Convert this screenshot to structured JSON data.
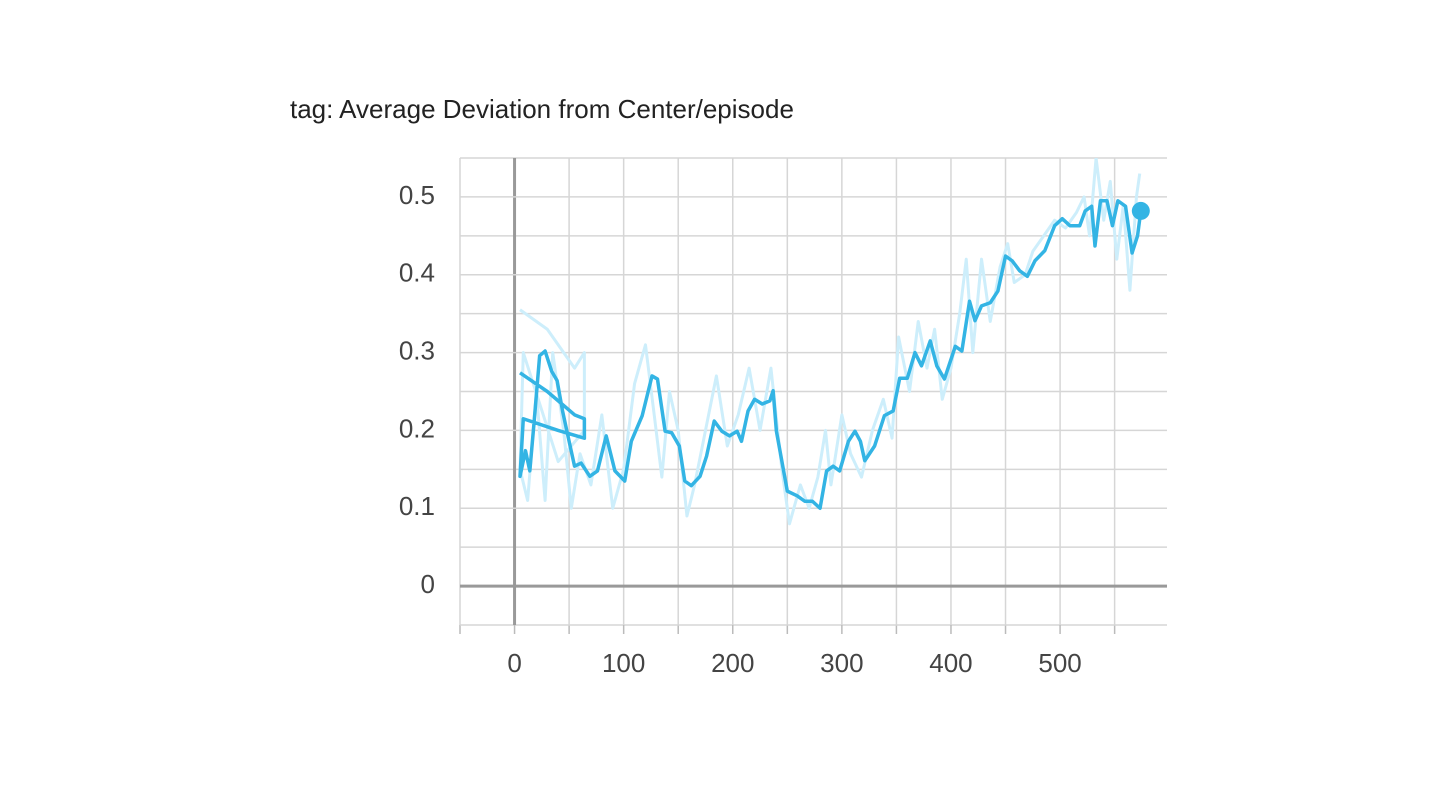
{
  "chart_data": {
    "type": "line",
    "title": "tag: Average Deviation from Center/episode",
    "xlim": [
      -50,
      598
    ],
    "ylim": [
      -0.05,
      0.55
    ],
    "xticks": [
      0,
      100,
      200,
      300,
      400,
      500
    ],
    "yticks": [
      0,
      0.1,
      0.2,
      0.3,
      0.4,
      0.5
    ],
    "grid": true,
    "series": [
      {
        "color": "#cdeefb",
        "x": [
          5,
          30,
          55,
          64,
          64,
          40,
          8,
          5,
          12,
          20,
          28,
          35,
          45,
          52,
          60,
          70,
          80,
          90,
          100,
          110,
          120,
          128,
          135,
          142,
          150,
          158,
          165,
          175,
          185,
          195,
          205,
          215,
          225,
          235,
          245,
          252,
          262,
          270,
          278,
          285,
          290,
          300,
          308,
          318,
          328,
          338,
          346,
          352,
          362,
          370,
          378,
          385,
          392,
          400,
          408,
          414,
          420,
          428,
          436,
          445,
          452,
          458,
          468,
          475,
          485,
          495,
          505,
          515,
          522,
          527,
          533,
          540,
          546,
          552,
          558,
          564,
          570,
          573
        ],
        "values": [
          0.355,
          0.33,
          0.28,
          0.3,
          0.2,
          0.16,
          0.3,
          0.15,
          0.11,
          0.25,
          0.11,
          0.3,
          0.2,
          0.1,
          0.17,
          0.13,
          0.22,
          0.1,
          0.15,
          0.26,
          0.31,
          0.22,
          0.14,
          0.25,
          0.2,
          0.09,
          0.13,
          0.2,
          0.27,
          0.18,
          0.22,
          0.28,
          0.2,
          0.28,
          0.15,
          0.08,
          0.13,
          0.1,
          0.14,
          0.2,
          0.13,
          0.22,
          0.17,
          0.14,
          0.2,
          0.24,
          0.19,
          0.32,
          0.25,
          0.34,
          0.28,
          0.33,
          0.24,
          0.28,
          0.35,
          0.42,
          0.3,
          0.42,
          0.34,
          0.41,
          0.44,
          0.39,
          0.4,
          0.43,
          0.45,
          0.47,
          0.46,
          0.48,
          0.5,
          0.45,
          0.55,
          0.47,
          0.52,
          0.42,
          0.49,
          0.38,
          0.5,
          0.53
        ]
      },
      {
        "color": "#33b4e4",
        "x": [
          5,
          30,
          55,
          64,
          64,
          40,
          8,
          5,
          10,
          14,
          18,
          23,
          28,
          34,
          39,
          44,
          50,
          55,
          61,
          69,
          76,
          84,
          92,
          101,
          107,
          117,
          126,
          131,
          138,
          144,
          151,
          156,
          162,
          170,
          176,
          183,
          190,
          197,
          204,
          208,
          214,
          220,
          227,
          234,
          237,
          240,
          250,
          259,
          266,
          273,
          280,
          286,
          292,
          298,
          306,
          312,
          317,
          321,
          330,
          339,
          347,
          353,
          360,
          367,
          373,
          381,
          387,
          394,
          404,
          410,
          417,
          422,
          428,
          436,
          443,
          450,
          456,
          463,
          470,
          477,
          486,
          495,
          502,
          509,
          518,
          523,
          529,
          532,
          537,
          543,
          548,
          553,
          560,
          566,
          571,
          574
        ],
        "values": [
          0.274,
          0.25,
          0.22,
          0.215,
          0.19,
          0.2,
          0.215,
          0.141,
          0.174,
          0.148,
          0.212,
          0.296,
          0.302,
          0.276,
          0.264,
          0.225,
          0.186,
          0.154,
          0.158,
          0.141,
          0.148,
          0.193,
          0.148,
          0.135,
          0.186,
          0.219,
          0.27,
          0.266,
          0.199,
          0.197,
          0.18,
          0.135,
          0.129,
          0.141,
          0.167,
          0.212,
          0.199,
          0.193,
          0.199,
          0.186,
          0.225,
          0.24,
          0.234,
          0.238,
          0.251,
          0.199,
          0.122,
          0.116,
          0.109,
          0.109,
          0.1,
          0.148,
          0.154,
          0.148,
          0.186,
          0.199,
          0.186,
          0.161,
          0.18,
          0.219,
          0.225,
          0.267,
          0.267,
          0.3,
          0.283,
          0.315,
          0.283,
          0.266,
          0.308,
          0.302,
          0.366,
          0.341,
          0.36,
          0.364,
          0.379,
          0.424,
          0.418,
          0.405,
          0.398,
          0.418,
          0.431,
          0.463,
          0.472,
          0.463,
          0.463,
          0.482,
          0.488,
          0.437,
          0.495,
          0.495,
          0.463,
          0.495,
          0.488,
          0.428,
          0.45,
          0.482
        ]
      }
    ]
  }
}
